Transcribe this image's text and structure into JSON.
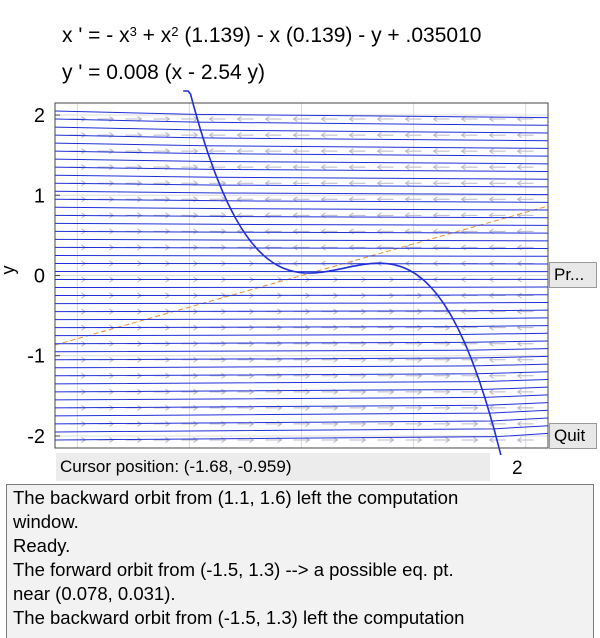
{
  "equations": {
    "x_prime_parts": [
      "x ' = - x",
      "3",
      " + x",
      "2",
      " (1.139) - x (0.139) - y + .035010"
    ],
    "y_prime": "y ' = 0.008 (x - 2.54 y)"
  },
  "chart_data": {
    "type": "phase-portrait",
    "xlabel": "",
    "ylabel": "y",
    "xlim": [
      -2.2,
      2.2
    ],
    "ylim": [
      -2.15,
      2.15
    ],
    "y_ticks": [
      "2",
      "1",
      "0",
      "-1",
      "-2"
    ],
    "x_tick_partial": "2",
    "grid": true,
    "nullclines": {
      "x_nullcline_color": "#e0437a",
      "y_nullcline_color": "#e69138"
    },
    "orbit_color": "#1f2fd8",
    "field_arrow_color": "#b8b8c8"
  },
  "buttons": {
    "print_label": "Pr...",
    "quit_label": "Quit"
  },
  "cursor": {
    "text": "Cursor position:  (-1.68, -0.959)"
  },
  "messages": [
    "The backward orbit from (1.1, 1.6) left the computation",
    "window.",
    "Ready.",
    "The forward orbit from (-1.5, 1.3) --> a possible eq. pt.",
    "near (0.078, 0.031).",
    "The backward orbit from (-1.5, 1.3) left the computation"
  ]
}
